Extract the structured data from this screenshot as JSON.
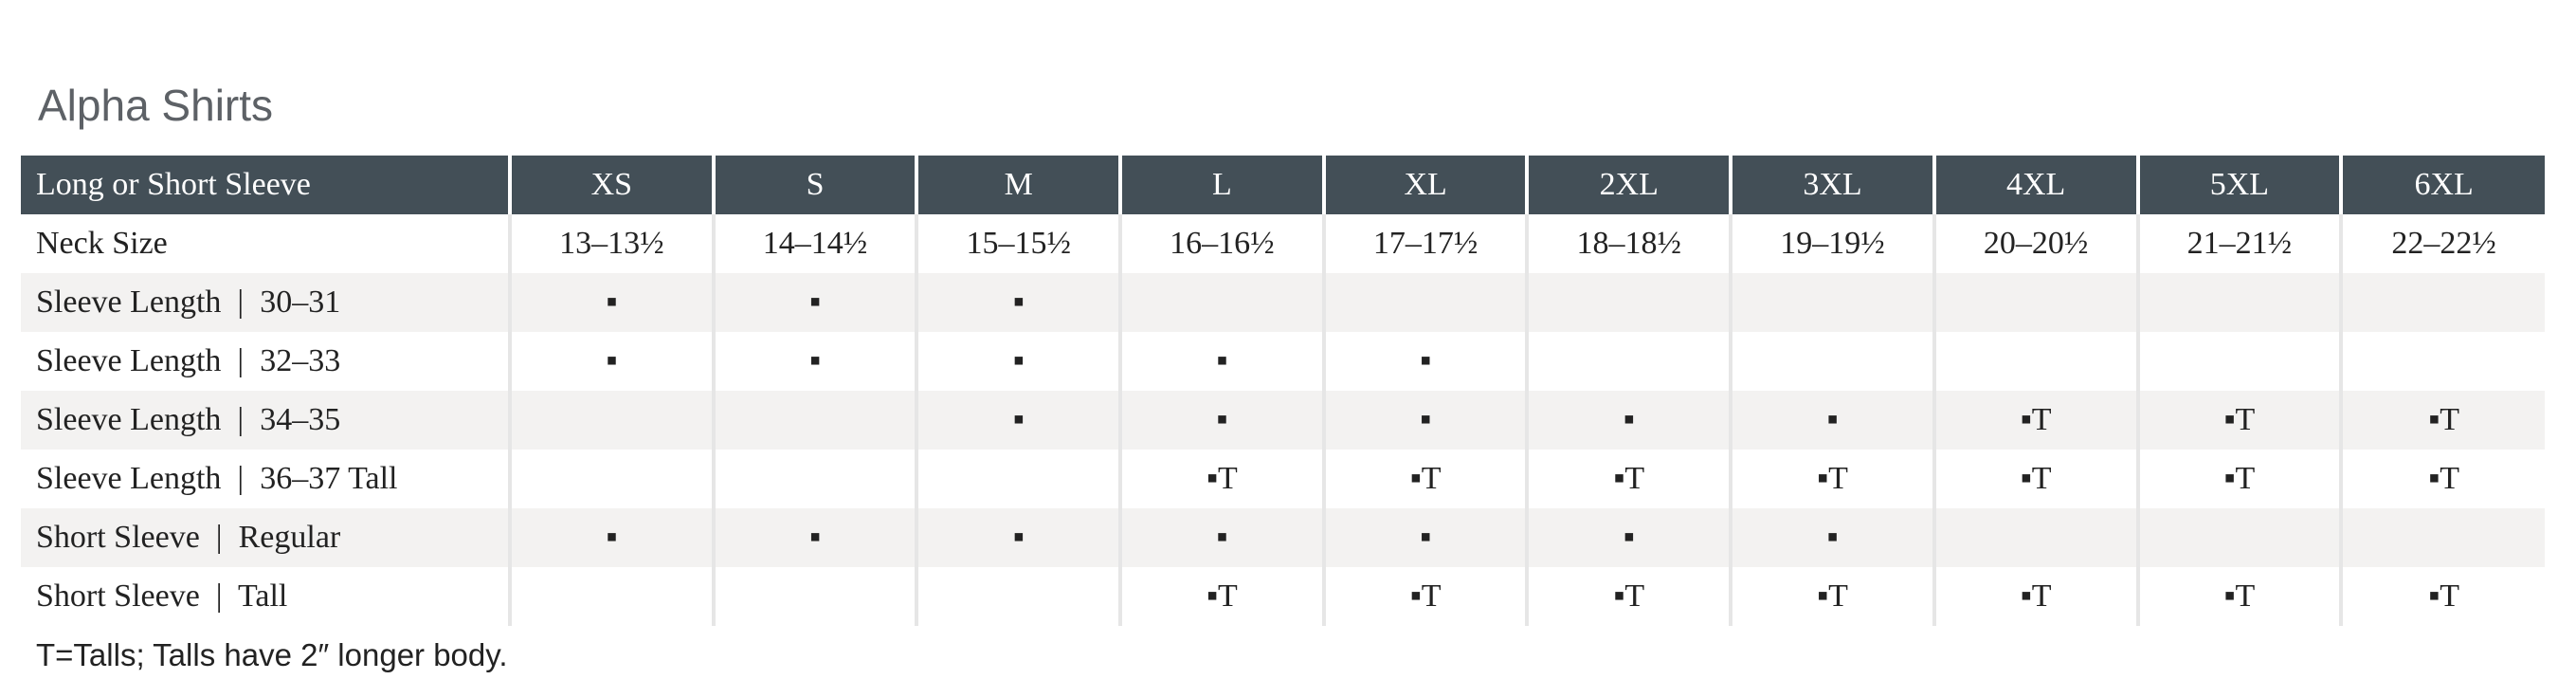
{
  "title": "Alpha Shirts",
  "table": {
    "header_label": "Long or Short Sleeve",
    "sizes": [
      "XS",
      "S",
      "M",
      "L",
      "XL",
      "2XL",
      "3XL",
      "4XL",
      "5XL",
      "6XL"
    ],
    "rows": [
      {
        "label": "Neck Size",
        "cells": [
          "13–13½",
          "14–14½",
          "15–15½",
          "16–16½",
          "17–17½",
          "18–18½",
          "19–19½",
          "20–20½",
          "21–21½",
          "22–22½"
        ]
      },
      {
        "label": "Sleeve Length  |  30–31",
        "cells": [
          "▪",
          "▪",
          "▪",
          "",
          "",
          "",
          "",
          "",
          "",
          ""
        ]
      },
      {
        "label": "Sleeve Length  |  32–33",
        "cells": [
          "▪",
          "▪",
          "▪",
          "▪",
          "▪",
          "",
          "",
          "",
          "",
          ""
        ]
      },
      {
        "label": "Sleeve Length  |  34–35",
        "cells": [
          "",
          "",
          "▪",
          "▪",
          "▪",
          "▪",
          "▪",
          "▪T",
          "▪T",
          "▪T"
        ]
      },
      {
        "label": "Sleeve Length  |  36–37 Tall",
        "cells": [
          "",
          "",
          "",
          "▪T",
          "▪T",
          "▪T",
          "▪T",
          "▪T",
          "▪T",
          "▪T"
        ]
      },
      {
        "label": "Short Sleeve  |  Regular",
        "cells": [
          "▪",
          "▪",
          "▪",
          "▪",
          "▪",
          "▪",
          "▪",
          "",
          "",
          ""
        ]
      },
      {
        "label": "Short Sleeve  |  Tall",
        "cells": [
          "",
          "",
          "",
          "▪T",
          "▪T",
          "▪T",
          "▪T",
          "▪T",
          "▪T",
          "▪T"
        ]
      }
    ]
  },
  "footnote": "T=Talls; Talls have 2″ longer body.",
  "colors": {
    "header_bg": "#434f57",
    "title_text": "#5d6166",
    "stripe_bg": "#f3f2f1"
  }
}
